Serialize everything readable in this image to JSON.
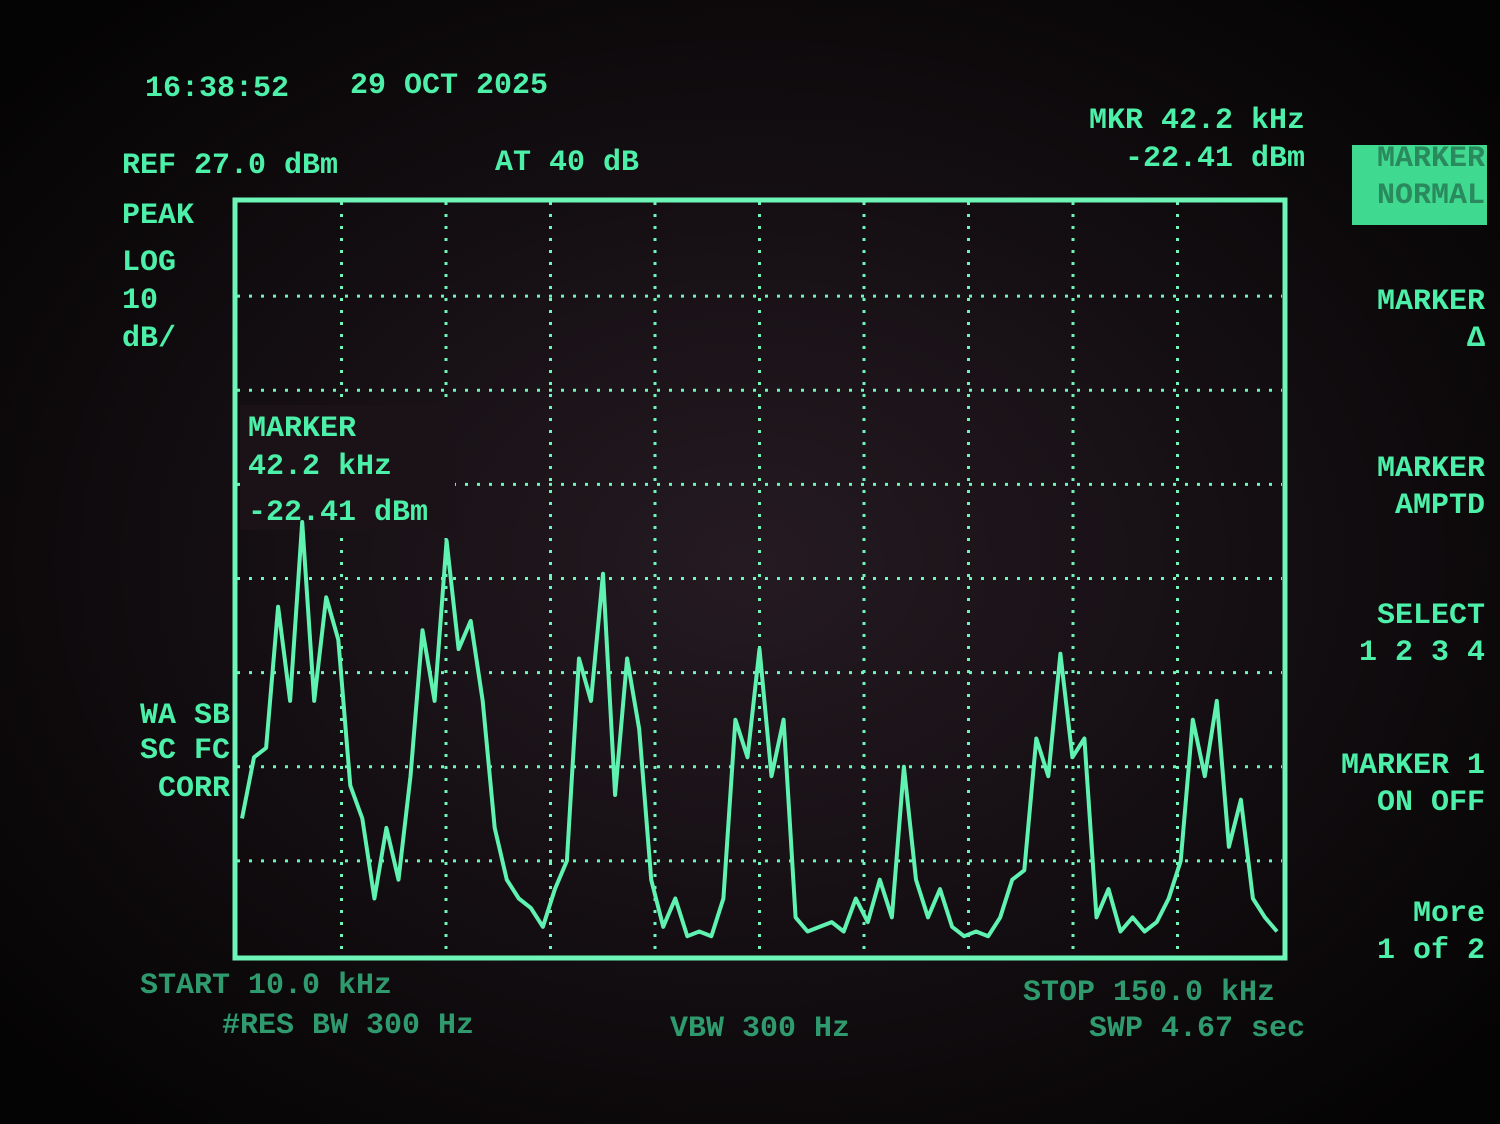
{
  "header": {
    "time": "16:38:52",
    "date": "29 OCT 2025",
    "ref_level": "REF 27.0 dBm",
    "attenuation": "AT 40 dB",
    "marker_freq": "MKR 42.2 kHz",
    "marker_ampl": "-22.41 dBm"
  },
  "scale": {
    "detector": "PEAK",
    "mode": "LOG",
    "per_div_value": "10",
    "per_div_unit": "dB/"
  },
  "marker_box": {
    "title": "MARKER",
    "freq": "42.2 kHz",
    "ampl": "-22.41 dBm"
  },
  "status": [
    "WA SB",
    "SC FC",
    "CORR"
  ],
  "footer": {
    "start": "START 10.0 kHz",
    "stop": "STOP 150.0 kHz",
    "rbw": "#RES BW 300 Hz",
    "vbw": "VBW 300 Hz",
    "sweep": "SWP 4.67  sec"
  },
  "softkeys": [
    [
      "MARKER",
      "NORMAL"
    ],
    [
      "MARKER",
      "Δ"
    ],
    [
      "MARKER",
      "AMPTD"
    ],
    [
      "SELECT",
      "1 2 3 4"
    ],
    [
      "MARKER 1",
      "ON OFF"
    ],
    [
      "More",
      "1 of 2"
    ]
  ],
  "trace": {
    "ylim": [
      -53,
      27
    ],
    "values": [
      -38.5,
      -32,
      -31,
      -16,
      -26,
      -7,
      -26,
      -15,
      -19.5,
      -35,
      -38.5,
      -47,
      -39.5,
      -45,
      -34,
      -18.5,
      -26,
      -9,
      -20.5,
      -17.5,
      -26,
      -39.5,
      -45,
      -47,
      -48,
      -50,
      -46,
      -43,
      -21.5,
      -26,
      -12.5,
      -36,
      -21.5,
      -29,
      -45,
      -50,
      -47,
      -51,
      -50.5,
      -51,
      -47,
      -28,
      -32,
      -20.5,
      -34,
      -28,
      -49,
      -50.5,
      -50,
      -49.5,
      -50.5,
      -47,
      -49.5,
      -45,
      -49,
      -33,
      -45,
      -49,
      -46,
      -50,
      -51,
      -50.5,
      -51,
      -49,
      -45,
      -44,
      -30,
      -34,
      -21,
      -32,
      -30,
      -49,
      -46,
      -50.5,
      -49,
      -50.5,
      -49.5,
      -47,
      -43,
      -28,
      -34,
      -26,
      -41.5,
      -36.5,
      -47,
      -49,
      -50.5
    ]
  }
}
